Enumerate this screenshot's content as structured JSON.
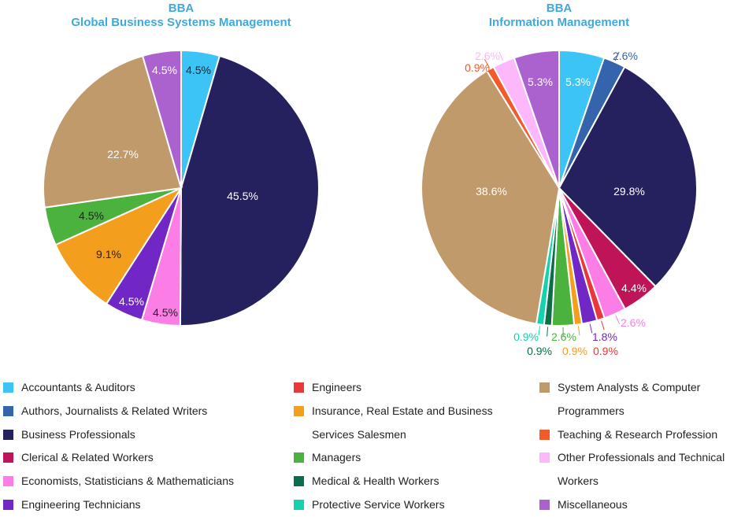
{
  "chart_data": [
    {
      "type": "pie",
      "title": "BBA",
      "subtitle": "Global Business Systems Management",
      "start": "12 o'clock, clockwise",
      "slices": [
        {
          "category": "Accountants & Auditors",
          "value": 4.5,
          "label": "4.5%"
        },
        {
          "category": "Business Professionals",
          "value": 45.5,
          "label": "45.5%"
        },
        {
          "category": "Economists, Statisticians & Mathematicians",
          "value": 4.5,
          "label": "4.5%"
        },
        {
          "category": "Engineering Technicians",
          "value": 4.5,
          "label": "4.5%"
        },
        {
          "category": "Insurance, Real Estate and Business Services Salesmen",
          "value": 9.1,
          "label": "9.1%"
        },
        {
          "category": "Managers",
          "value": 4.5,
          "label": "4.5%"
        },
        {
          "category": "System Analysts & Computer Programmers",
          "value": 22.7,
          "label": "22.7%"
        },
        {
          "category": "Miscellaneous",
          "value": 4.5,
          "label": "4.5%"
        }
      ]
    },
    {
      "type": "pie",
      "title": "BBA",
      "subtitle": "Information Management",
      "start": "12 o'clock, clockwise",
      "slices": [
        {
          "category": "Accountants & Auditors",
          "value": 5.3,
          "label": "5.3%"
        },
        {
          "category": "Authors, Journalists & Related Writers",
          "value": 2.6,
          "label": "2.6%"
        },
        {
          "category": "Business Professionals",
          "value": 29.8,
          "label": "29.8%"
        },
        {
          "category": "Clerical & Related Workers",
          "value": 4.4,
          "label": "4.4%"
        },
        {
          "category": "Economists, Statisticians & Mathematicians",
          "value": 2.6,
          "label": "2.6%"
        },
        {
          "category": "Engineers",
          "value": 0.9,
          "label": "0.9%"
        },
        {
          "category": "Engineering Technicians",
          "value": 1.8,
          "label": "1.8%"
        },
        {
          "category": "Insurance, Real Estate and Business Services Salesmen",
          "value": 0.9,
          "label": "0.9%"
        },
        {
          "category": "Managers",
          "value": 2.6,
          "label": "2.6%"
        },
        {
          "category": "Medical & Health Workers",
          "value": 0.9,
          "label": "0.9%"
        },
        {
          "category": "Protective Service Workers",
          "value": 0.9,
          "label": "0.9%"
        },
        {
          "category": "System Analysts & Computer Programmers",
          "value": 38.6,
          "label": "38.6%"
        },
        {
          "category": "Teaching & Research Profession",
          "value": 0.9,
          "label": "0.9%"
        },
        {
          "category": "Other Professionals and Technical Workers",
          "value": 2.6,
          "label": "2.6%"
        },
        {
          "category": "Miscellaneous",
          "value": 5.3,
          "label": "5.3%"
        }
      ]
    }
  ],
  "legend": {
    "columns": [
      [
        {
          "label": "Accountants & Auditors",
          "color": "#3DC4F7"
        },
        {
          "label": "Authors, Journalists & Related Writers",
          "color": "#3464AC"
        },
        {
          "label": "Business Professionals",
          "color": "#25215E"
        },
        {
          "label": "Clerical & Related Workers",
          "color": "#BF1558"
        },
        {
          "label": "Economists, Statisticians & Mathematicians",
          "color": "#FA7EE6"
        },
        {
          "label": "Engineering Technicians",
          "color": "#7127C5"
        }
      ],
      [
        {
          "label": "Engineers",
          "color": "#E8383C"
        },
        {
          "label": "Insurance, Real Estate and Business",
          "label2": "Services Salesmen",
          "color": "#F49E1D"
        },
        {
          "label": "Managers",
          "color": "#4BB33D"
        },
        {
          "label": "Medical & Health Workers",
          "color": "#0A6E4A"
        },
        {
          "label": "Protective Service Workers",
          "color": "#14D2AE"
        }
      ],
      [
        {
          "label": "System Analysts & Computer",
          "label2": "Programmers",
          "color": "#C19A6B"
        },
        {
          "label": "Teaching & Research Profession",
          "color": "#F25A2A"
        },
        {
          "label": "Other Professionals and Technical",
          "label2": "Workers",
          "color": "#FCB8FA"
        },
        {
          "label": "Miscellaneous",
          "color": "#AB62CF"
        }
      ]
    ]
  },
  "colors": {
    "title": "#3FA9DC"
  }
}
